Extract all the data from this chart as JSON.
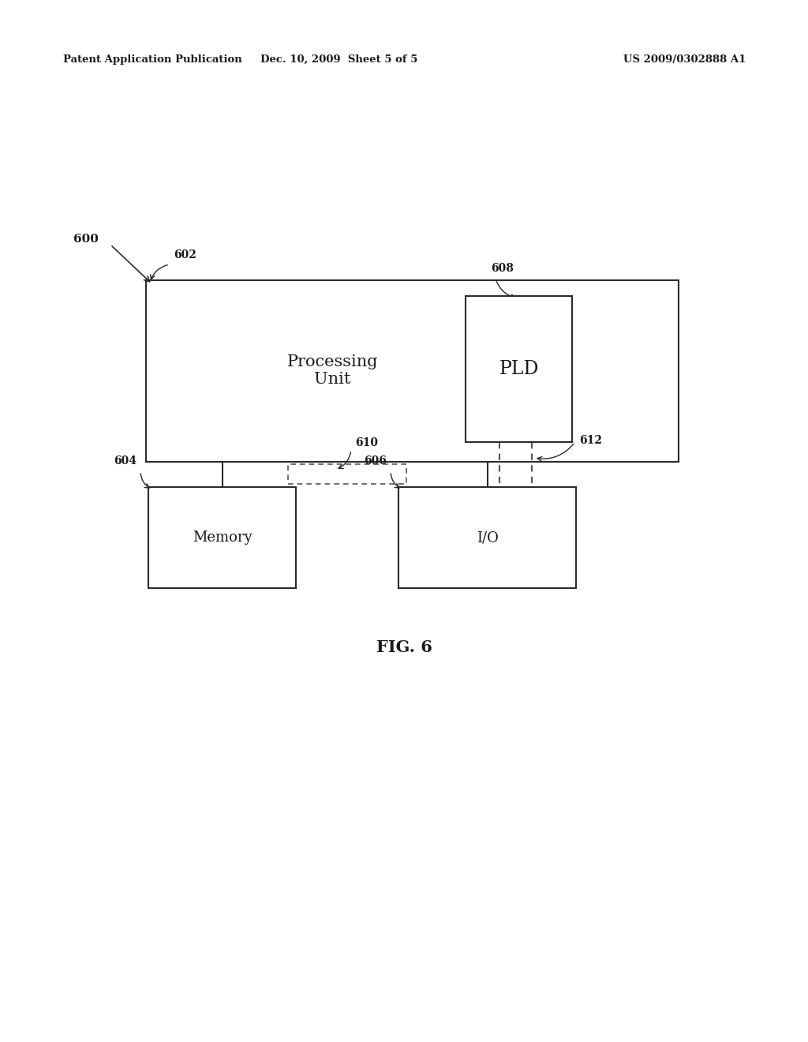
{
  "bg_color": "#ffffff",
  "header_left": "Patent Application Publication",
  "header_center": "Dec. 10, 2009  Sheet 5 of 5",
  "header_right": "US 2009/0302888 A1",
  "fig_label": "FIG. 6",
  "label_600": "600",
  "label_602": "602",
  "label_604": "604",
  "label_606": "606",
  "label_608": "608",
  "label_610": "610",
  "label_612": "612",
  "text_processing_unit": "Processing\nUnit",
  "text_pld": "PLD",
  "text_memory": "Memory",
  "text_io": "I/O",
  "line_color": "#2a2a2a",
  "dashed_color": "#555555",
  "text_color": "#1a1a1a",
  "font_family": "DejaVu Serif"
}
